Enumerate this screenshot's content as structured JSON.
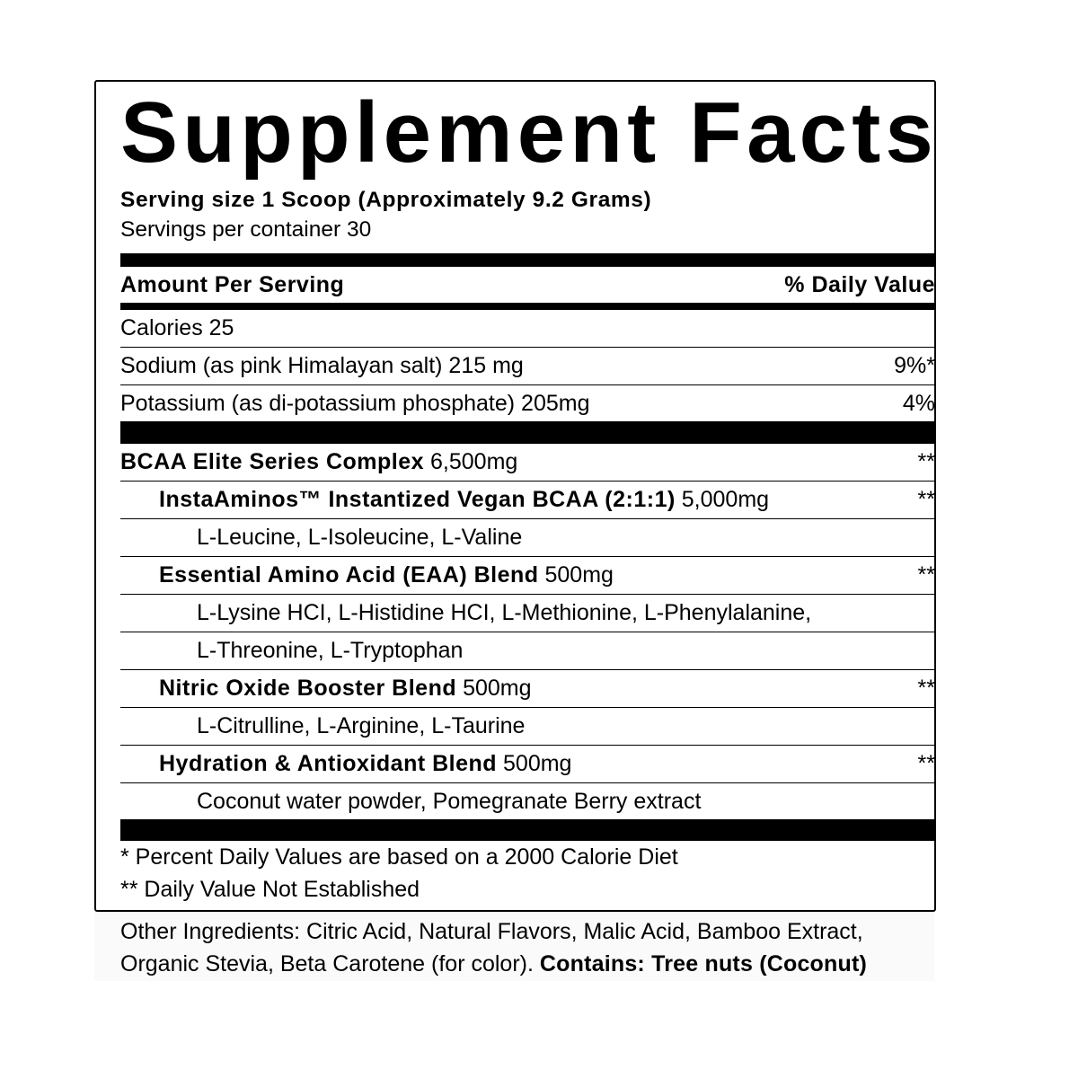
{
  "title": "Supplement Facts",
  "serving_size": "Serving size 1 Scoop (Approximately 9.2 Grams)",
  "servings_per_container": "Servings per container 30",
  "header": {
    "amount": "Amount Per Serving",
    "dv": "% Daily Value"
  },
  "rows": [
    {
      "bold": "",
      "text": "Calories 25",
      "dv": ""
    },
    {
      "bold": "",
      "text": "Sodium (as pink Himalayan salt) 215 mg",
      "dv": "9%*"
    },
    {
      "bold": "",
      "text": "Potassium (as di-potassium phosphate) 205mg",
      "dv": "4%"
    }
  ],
  "blend_rows": [
    {
      "bold": "BCAA Elite Series Complex",
      "text": " 6,500mg",
      "dv": "**"
    },
    {
      "bold": "InstaAminos™ Instantized Vegan BCAA (2:1:1)",
      "text": " 5,000mg",
      "dv": "**"
    },
    {
      "bold": "",
      "text": "L-Leucine, L-Isoleucine, L-Valine",
      "dv": ""
    },
    {
      "bold": "Essential Amino Acid (EAA) Blend",
      "text": " 500mg",
      "dv": "**"
    },
    {
      "bold": "",
      "text": "L-Lysine HCI, L-Histidine HCI, L-Methionine, L-Phenylalanine,",
      "dv": ""
    },
    {
      "bold": "",
      "text": "L-Threonine, L-Tryptophan",
      "dv": ""
    },
    {
      "bold": "Nitric Oxide Booster Blend",
      "text": " 500mg",
      "dv": "**"
    },
    {
      "bold": "",
      "text": "L-Citrulline, L-Arginine, L-Taurine",
      "dv": ""
    },
    {
      "bold": "Hydration & Antioxidant Blend",
      "text": " 500mg",
      "dv": "**"
    },
    {
      "bold": "",
      "text": "Coconut water powder, Pomegranate Berry extract",
      "dv": ""
    }
  ],
  "footnotes": [
    "* Percent Daily Values are based on a 2000 Calorie Diet",
    "** Daily Value Not Established"
  ],
  "other_ingredients": {
    "text": "Other Ingredients: Citric Acid, Natural Flavors, Malic Acid, Bamboo Extract, Organic Stevia, Beta Carotene (for color).",
    "contains": "Contains: Tree nuts (Coconut)"
  }
}
